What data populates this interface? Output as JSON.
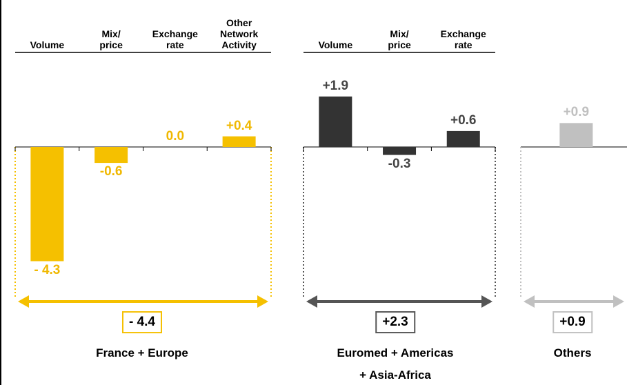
{
  "chart_data": {
    "type": "bar",
    "ylim": [
      -4.5,
      2.5
    ],
    "groups": [
      {
        "name": "France + Europe",
        "color": "#f5c000",
        "categories": [
          "Volume",
          "Mix/\nprice",
          "Exchange\nrate",
          "Other\nNetwork\nActivity"
        ],
        "values": [
          -4.3,
          -0.6,
          0.0,
          0.4
        ],
        "value_labels": [
          "- 4.3",
          "-0.6",
          "0.0",
          "+0.4"
        ],
        "total": -4.4,
        "total_label": "- 4.4"
      },
      {
        "name": "Euromed + Americas\n+ Asia-Africa",
        "color": "#333333",
        "categories": [
          "Volume",
          "Mix/\nprice",
          "Exchange\nrate"
        ],
        "values": [
          1.9,
          -0.3,
          0.6
        ],
        "value_labels": [
          "+1.9",
          "-0.3",
          "+0.6"
        ],
        "total": 2.3,
        "total_label": "+2.3"
      },
      {
        "name": "Others",
        "color": "#c0c0c0",
        "values": [
          0.9
        ],
        "value_labels": [
          "+0.9"
        ],
        "total": 0.9,
        "total_label": "+0.9"
      }
    ]
  }
}
